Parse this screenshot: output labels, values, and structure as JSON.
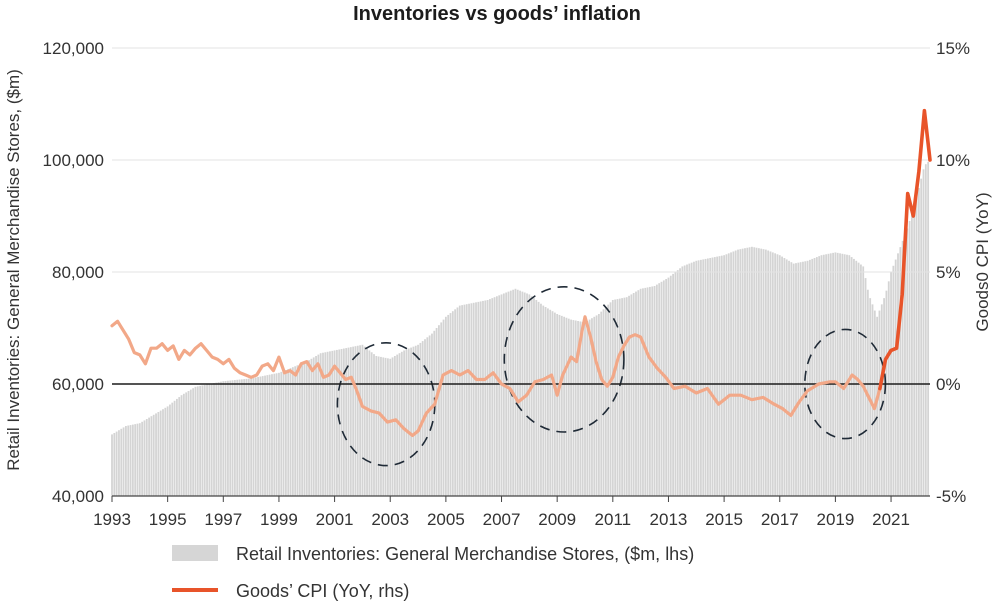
{
  "chart_data": {
    "type": "bar+line",
    "title": "Inventories vs goods’ inflation",
    "ylabel_left": "Retail Inventories: General Merchandise Stores, ($m)",
    "ylabel_right": "Goods0 CPI (YoY)",
    "left_axis": {
      "ylim": [
        40000,
        120000
      ],
      "ticks": [
        40000,
        60000,
        80000,
        100000,
        120000
      ],
      "tick_labels": [
        "40,000",
        "60,000",
        "80,000",
        "100,000",
        "120,000"
      ]
    },
    "right_axis": {
      "ylim": [
        -5,
        15
      ],
      "ticks": [
        -5,
        0,
        5,
        10,
        15
      ],
      "tick_labels": [
        "-5%",
        "0%",
        "5%",
        "10%",
        "15%"
      ]
    },
    "x_axis": {
      "xlim": [
        1993,
        2022.4
      ],
      "ticks": [
        1993,
        1995,
        1997,
        1999,
        2001,
        2003,
        2005,
        2007,
        2009,
        2011,
        2013,
        2015,
        2017,
        2019,
        2021
      ],
      "tick_labels": [
        "1993",
        "1995",
        "1997",
        "1999",
        "2001",
        "2003",
        "2005",
        "2007",
        "2009",
        "2011",
        "2013",
        "2015",
        "2017",
        "2019",
        "2021"
      ]
    },
    "legend": {
      "placement": "bottom",
      "entries": [
        "Retail Inventories: General Merchandise Stores, ($m, lhs)",
        "Goods’ CPI (YoY, rhs)"
      ]
    },
    "colors": {
      "bars": "#d4d4d4",
      "line_early": "#f2a888",
      "line_late": "#e8542a",
      "zero_line": "#1c1c1c",
      "ellipse": "#1f2a36"
    },
    "highlighted_periods": [
      {
        "from": 2001.1,
        "to": 2004.6
      },
      {
        "from": 2007.1,
        "to": 2011.4
      },
      {
        "from": 2017.9,
        "to": 2020.8
      }
    ],
    "series": [
      {
        "name": "Retail Inventories: General Merchandise Stores, ($m, lhs)",
        "axis": "left",
        "style": "bar",
        "points": [
          [
            1993.0,
            51000
          ],
          [
            1993.5,
            52500
          ],
          [
            1994.0,
            53000
          ],
          [
            1994.5,
            54500
          ],
          [
            1995.0,
            56000
          ],
          [
            1995.5,
            58000
          ],
          [
            1996.0,
            59500
          ],
          [
            1996.5,
            60000
          ],
          [
            1997.0,
            60500
          ],
          [
            1998.0,
            61000
          ],
          [
            1999.0,
            62000
          ],
          [
            2000.0,
            64000
          ],
          [
            2000.5,
            65500
          ],
          [
            2001.0,
            66000
          ],
          [
            2001.5,
            66500
          ],
          [
            2002.0,
            67000
          ],
          [
            2002.5,
            65000
          ],
          [
            2003.0,
            64500
          ],
          [
            2003.5,
            66000
          ],
          [
            2004.0,
            67000
          ],
          [
            2004.5,
            69000
          ],
          [
            2005.0,
            72000
          ],
          [
            2005.5,
            74000
          ],
          [
            2006.0,
            74500
          ],
          [
            2006.5,
            75000
          ],
          [
            2007.0,
            76000
          ],
          [
            2007.5,
            77000
          ],
          [
            2008.0,
            76000
          ],
          [
            2008.5,
            74000
          ],
          [
            2009.0,
            72500
          ],
          [
            2009.5,
            71500
          ],
          [
            2010.0,
            71000
          ],
          [
            2010.5,
            72500
          ],
          [
            2011.0,
            75000
          ],
          [
            2011.5,
            75500
          ],
          [
            2012.0,
            77000
          ],
          [
            2012.5,
            77500
          ],
          [
            2013.0,
            79000
          ],
          [
            2013.5,
            81000
          ],
          [
            2014.0,
            82000
          ],
          [
            2014.5,
            82500
          ],
          [
            2015.0,
            83000
          ],
          [
            2015.5,
            84000
          ],
          [
            2016.0,
            84500
          ],
          [
            2016.5,
            84000
          ],
          [
            2017.0,
            83000
          ],
          [
            2017.5,
            81500
          ],
          [
            2018.0,
            82000
          ],
          [
            2018.5,
            83000
          ],
          [
            2019.0,
            83500
          ],
          [
            2019.5,
            83000
          ],
          [
            2020.0,
            81000
          ],
          [
            2020.2,
            76000
          ],
          [
            2020.5,
            72000
          ],
          [
            2020.8,
            76000
          ],
          [
            2021.0,
            80000
          ],
          [
            2021.3,
            84000
          ],
          [
            2021.6,
            88000
          ],
          [
            2021.9,
            93000
          ],
          [
            2022.2,
            99000
          ],
          [
            2022.4,
            100000
          ]
        ]
      },
      {
        "name": "Goods’ CPI (YoY, rhs)",
        "axis": "right",
        "style": "line",
        "points": [
          [
            1993.0,
            2.6
          ],
          [
            1993.2,
            2.8
          ],
          [
            1993.4,
            2.4
          ],
          [
            1993.6,
            2.0
          ],
          [
            1993.8,
            1.4
          ],
          [
            1994.0,
            1.3
          ],
          [
            1994.2,
            0.9
          ],
          [
            1994.4,
            1.6
          ],
          [
            1994.6,
            1.6
          ],
          [
            1994.8,
            1.8
          ],
          [
            1995.0,
            1.5
          ],
          [
            1995.2,
            1.7
          ],
          [
            1995.4,
            1.1
          ],
          [
            1995.6,
            1.5
          ],
          [
            1995.8,
            1.3
          ],
          [
            1996.0,
            1.6
          ],
          [
            1996.2,
            1.8
          ],
          [
            1996.4,
            1.5
          ],
          [
            1996.6,
            1.2
          ],
          [
            1996.8,
            1.1
          ],
          [
            1997.0,
            0.9
          ],
          [
            1997.2,
            1.1
          ],
          [
            1997.4,
            0.7
          ],
          [
            1997.6,
            0.5
          ],
          [
            1997.8,
            0.4
          ],
          [
            1998.0,
            0.3
          ],
          [
            1998.2,
            0.4
          ],
          [
            1998.4,
            0.8
          ],
          [
            1998.6,
            0.9
          ],
          [
            1998.8,
            0.6
          ],
          [
            1999.0,
            1.2
          ],
          [
            1999.2,
            0.5
          ],
          [
            1999.4,
            0.6
          ],
          [
            1999.6,
            0.4
          ],
          [
            1999.8,
            0.9
          ],
          [
            2000.0,
            1.0
          ],
          [
            2000.2,
            0.6
          ],
          [
            2000.4,
            0.9
          ],
          [
            2000.6,
            0.3
          ],
          [
            2000.8,
            0.4
          ],
          [
            2001.0,
            0.8
          ],
          [
            2001.2,
            0.5
          ],
          [
            2001.4,
            0.2
          ],
          [
            2001.6,
            0.3
          ],
          [
            2001.8,
            -0.3
          ],
          [
            2002.0,
            -1.0
          ],
          [
            2002.3,
            -1.2
          ],
          [
            2002.6,
            -1.3
          ],
          [
            2002.9,
            -1.7
          ],
          [
            2003.2,
            -1.6
          ],
          [
            2003.5,
            -2.0
          ],
          [
            2003.8,
            -2.3
          ],
          [
            2004.0,
            -2.1
          ],
          [
            2004.3,
            -1.3
          ],
          [
            2004.6,
            -0.9
          ],
          [
            2004.9,
            0.4
          ],
          [
            2005.2,
            0.6
          ],
          [
            2005.5,
            0.4
          ],
          [
            2005.8,
            0.6
          ],
          [
            2006.1,
            0.2
          ],
          [
            2006.4,
            0.2
          ],
          [
            2006.7,
            0.5
          ],
          [
            2007.0,
            0.0
          ],
          [
            2007.3,
            -0.2
          ],
          [
            2007.6,
            -0.8
          ],
          [
            2007.9,
            -0.5
          ],
          [
            2008.2,
            0.1
          ],
          [
            2008.5,
            0.2
          ],
          [
            2008.8,
            0.4
          ],
          [
            2009.0,
            -0.5
          ],
          [
            2009.2,
            0.4
          ],
          [
            2009.5,
            1.2
          ],
          [
            2009.7,
            1.0
          ],
          [
            2009.9,
            2.4
          ],
          [
            2010.0,
            3.0
          ],
          [
            2010.2,
            2.1
          ],
          [
            2010.4,
            1.0
          ],
          [
            2010.6,
            0.2
          ],
          [
            2010.8,
            -0.1
          ],
          [
            2011.0,
            0.3
          ],
          [
            2011.2,
            1.2
          ],
          [
            2011.4,
            1.7
          ],
          [
            2011.6,
            2.1
          ],
          [
            2011.8,
            2.2
          ],
          [
            2012.0,
            2.1
          ],
          [
            2012.3,
            1.2
          ],
          [
            2012.6,
            0.7
          ],
          [
            2012.9,
            0.3
          ],
          [
            2013.2,
            -0.2
          ],
          [
            2013.6,
            -0.1
          ],
          [
            2014.0,
            -0.4
          ],
          [
            2014.4,
            -0.2
          ],
          [
            2014.8,
            -0.9
          ],
          [
            2015.2,
            -0.5
          ],
          [
            2015.6,
            -0.5
          ],
          [
            2016.0,
            -0.7
          ],
          [
            2016.4,
            -0.6
          ],
          [
            2016.8,
            -0.9
          ],
          [
            2017.1,
            -1.1
          ],
          [
            2017.4,
            -1.4
          ],
          [
            2017.7,
            -0.8
          ],
          [
            2018.0,
            -0.3
          ],
          [
            2018.4,
            0.0
          ],
          [
            2018.8,
            0.1
          ],
          [
            2019.0,
            0.1
          ],
          [
            2019.3,
            -0.2
          ],
          [
            2019.6,
            0.4
          ],
          [
            2019.8,
            0.2
          ],
          [
            2020.0,
            -0.1
          ],
          [
            2020.2,
            -0.6
          ],
          [
            2020.4,
            -1.1
          ],
          [
            2020.6,
            -0.2
          ],
          [
            2020.8,
            1.1
          ],
          [
            2021.0,
            1.5
          ],
          [
            2021.2,
            1.6
          ],
          [
            2021.4,
            4.0
          ],
          [
            2021.6,
            8.5
          ],
          [
            2021.8,
            7.5
          ],
          [
            2022.0,
            9.5
          ],
          [
            2022.2,
            12.2
          ],
          [
            2022.4,
            10.0
          ]
        ]
      }
    ]
  }
}
